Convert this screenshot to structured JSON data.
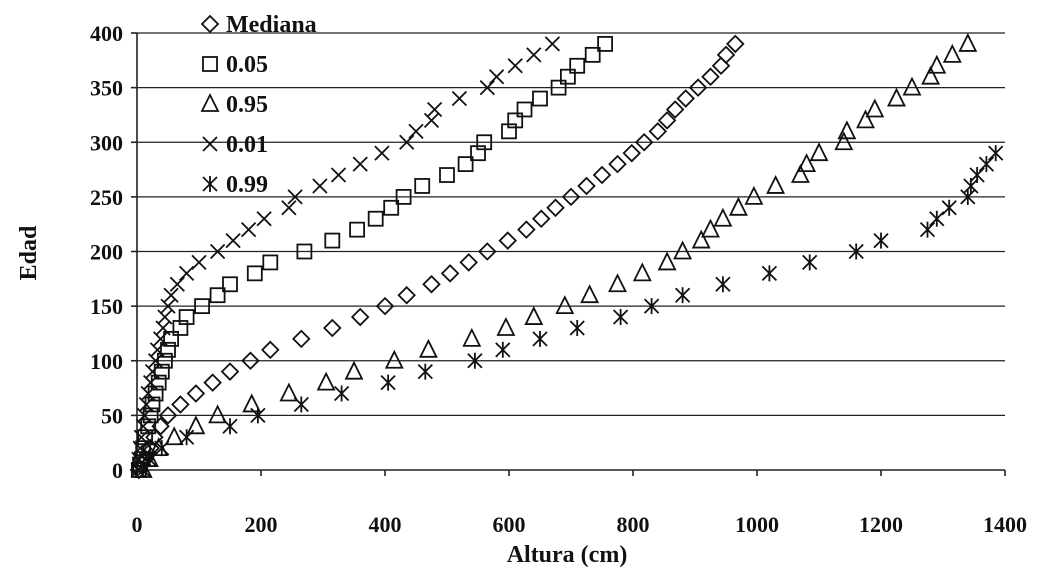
{
  "chart_data": {
    "type": "scatter",
    "title": "",
    "xlabel": "Altura (cm)",
    "ylabel": "Edad",
    "xlim": [
      0,
      1400
    ],
    "ylim": [
      0,
      400
    ],
    "xticks": [
      0,
      200,
      400,
      600,
      800,
      1000,
      1200,
      1400
    ],
    "yticks": [
      0,
      50,
      100,
      150,
      200,
      250,
      300,
      350,
      400
    ],
    "grid": "horizontal",
    "legend_position": "top-left",
    "series": [
      {
        "name": "Mediana",
        "marker": "diamond",
        "points": [
          [
            3,
            0
          ],
          [
            8,
            5
          ],
          [
            13,
            10
          ],
          [
            18,
            15
          ],
          [
            22,
            20
          ],
          [
            28,
            30
          ],
          [
            38,
            40
          ],
          [
            50,
            50
          ],
          [
            70,
            60
          ],
          [
            95,
            70
          ],
          [
            122,
            80
          ],
          [
            150,
            90
          ],
          [
            183,
            100
          ],
          [
            215,
            110
          ],
          [
            265,
            120
          ],
          [
            315,
            130
          ],
          [
            360,
            140
          ],
          [
            400,
            150
          ],
          [
            435,
            160
          ],
          [
            475,
            170
          ],
          [
            505,
            180
          ],
          [
            535,
            190
          ],
          [
            565,
            200
          ],
          [
            598,
            210
          ],
          [
            628,
            220
          ],
          [
            652,
            230
          ],
          [
            675,
            240
          ],
          [
            700,
            250
          ],
          [
            725,
            260
          ],
          [
            750,
            270
          ],
          [
            775,
            280
          ],
          [
            798,
            290
          ],
          [
            818,
            300
          ],
          [
            840,
            310
          ],
          [
            855,
            320
          ],
          [
            868,
            330
          ],
          [
            885,
            340
          ],
          [
            905,
            350
          ],
          [
            925,
            360
          ],
          [
            942,
            370
          ],
          [
            950,
            380
          ],
          [
            965,
            390
          ]
        ]
      },
      {
        "name": "0.05",
        "marker": "square",
        "points": [
          [
            3,
            0
          ],
          [
            5,
            5
          ],
          [
            8,
            10
          ],
          [
            10,
            20
          ],
          [
            13,
            30
          ],
          [
            18,
            40
          ],
          [
            22,
            50
          ],
          [
            25,
            60
          ],
          [
            30,
            70
          ],
          [
            35,
            80
          ],
          [
            40,
            90
          ],
          [
            45,
            100
          ],
          [
            50,
            110
          ],
          [
            55,
            120
          ],
          [
            70,
            130
          ],
          [
            80,
            140
          ],
          [
            105,
            150
          ],
          [
            130,
            160
          ],
          [
            150,
            170
          ],
          [
            190,
            180
          ],
          [
            215,
            190
          ],
          [
            270,
            200
          ],
          [
            315,
            210
          ],
          [
            355,
            220
          ],
          [
            385,
            230
          ],
          [
            410,
            240
          ],
          [
            430,
            250
          ],
          [
            460,
            260
          ],
          [
            500,
            270
          ],
          [
            530,
            280
          ],
          [
            550,
            290
          ],
          [
            560,
            300
          ],
          [
            600,
            310
          ],
          [
            610,
            320
          ],
          [
            625,
            330
          ],
          [
            650,
            340
          ],
          [
            680,
            350
          ],
          [
            695,
            360
          ],
          [
            710,
            370
          ],
          [
            735,
            380
          ],
          [
            755,
            390
          ]
        ]
      },
      {
        "name": "0.95",
        "marker": "triangle",
        "points": [
          [
            10,
            0
          ],
          [
            20,
            10
          ],
          [
            35,
            20
          ],
          [
            60,
            30
          ],
          [
            95,
            40
          ],
          [
            130,
            50
          ],
          [
            185,
            60
          ],
          [
            245,
            70
          ],
          [
            305,
            80
          ],
          [
            350,
            90
          ],
          [
            415,
            100
          ],
          [
            470,
            110
          ],
          [
            540,
            120
          ],
          [
            595,
            130
          ],
          [
            640,
            140
          ],
          [
            690,
            150
          ],
          [
            730,
            160
          ],
          [
            775,
            170
          ],
          [
            815,
            180
          ],
          [
            855,
            190
          ],
          [
            880,
            200
          ],
          [
            910,
            210
          ],
          [
            925,
            220
          ],
          [
            945,
            230
          ],
          [
            970,
            240
          ],
          [
            995,
            250
          ],
          [
            1030,
            260
          ],
          [
            1070,
            270
          ],
          [
            1080,
            280
          ],
          [
            1100,
            290
          ],
          [
            1140,
            300
          ],
          [
            1145,
            310
          ],
          [
            1175,
            320
          ],
          [
            1190,
            330
          ],
          [
            1225,
            340
          ],
          [
            1250,
            350
          ],
          [
            1280,
            360
          ],
          [
            1290,
            370
          ],
          [
            1315,
            380
          ],
          [
            1340,
            390
          ]
        ]
      },
      {
        "name": "0.01",
        "marker": "x",
        "points": [
          [
            2,
            0
          ],
          [
            3,
            10
          ],
          [
            5,
            20
          ],
          [
            7,
            30
          ],
          [
            10,
            40
          ],
          [
            12,
            50
          ],
          [
            15,
            60
          ],
          [
            18,
            70
          ],
          [
            22,
            80
          ],
          [
            25,
            90
          ],
          [
            30,
            100
          ],
          [
            33,
            110
          ],
          [
            38,
            120
          ],
          [
            42,
            130
          ],
          [
            45,
            140
          ],
          [
            50,
            150
          ],
          [
            55,
            160
          ],
          [
            65,
            170
          ],
          [
            80,
            180
          ],
          [
            100,
            190
          ],
          [
            130,
            200
          ],
          [
            155,
            210
          ],
          [
            180,
            220
          ],
          [
            205,
            230
          ],
          [
            245,
            240
          ],
          [
            255,
            250
          ],
          [
            295,
            260
          ],
          [
            325,
            270
          ],
          [
            360,
            280
          ],
          [
            395,
            290
          ],
          [
            435,
            300
          ],
          [
            450,
            310
          ],
          [
            475,
            320
          ],
          [
            480,
            330
          ],
          [
            520,
            340
          ],
          [
            565,
            350
          ],
          [
            580,
            360
          ],
          [
            610,
            370
          ],
          [
            640,
            380
          ],
          [
            670,
            390
          ]
        ]
      },
      {
        "name": "0.99",
        "marker": "asterisk",
        "points": [
          [
            10,
            0
          ],
          [
            20,
            10
          ],
          [
            40,
            20
          ],
          [
            80,
            30
          ],
          [
            150,
            40
          ],
          [
            195,
            50
          ],
          [
            265,
            60
          ],
          [
            330,
            70
          ],
          [
            405,
            80
          ],
          [
            465,
            90
          ],
          [
            545,
            100
          ],
          [
            590,
            110
          ],
          [
            650,
            120
          ],
          [
            710,
            130
          ],
          [
            780,
            140
          ],
          [
            830,
            150
          ],
          [
            880,
            160
          ],
          [
            945,
            170
          ],
          [
            1020,
            180
          ],
          [
            1085,
            190
          ],
          [
            1160,
            200
          ],
          [
            1200,
            210
          ],
          [
            1275,
            220
          ],
          [
            1290,
            230
          ],
          [
            1310,
            240
          ],
          [
            1340,
            250
          ],
          [
            1345,
            260
          ],
          [
            1355,
            270
          ],
          [
            1370,
            280
          ],
          [
            1385,
            290
          ]
        ]
      }
    ]
  }
}
